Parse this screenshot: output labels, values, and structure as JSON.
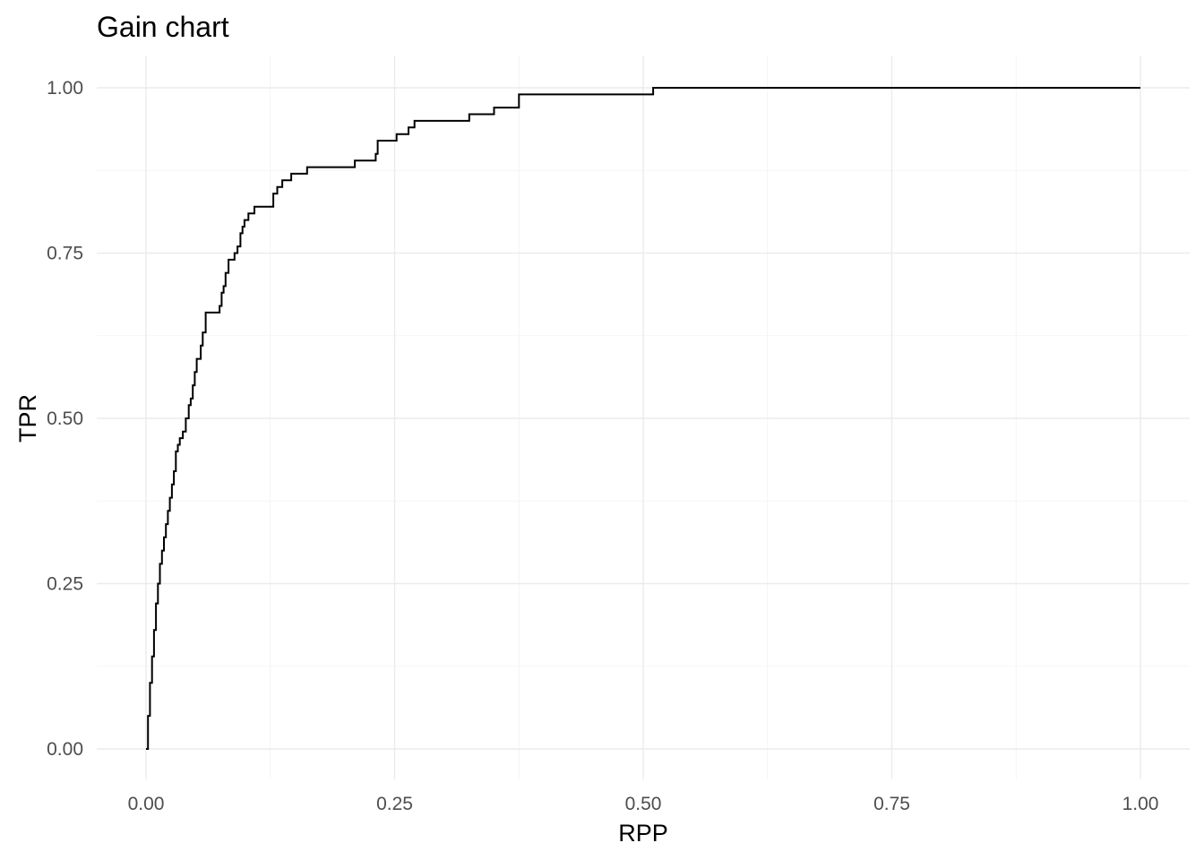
{
  "chart_data": {
    "type": "line",
    "title": "Gain chart",
    "xlabel": "RPP",
    "ylabel": "TPR",
    "xlim": [
      0,
      1
    ],
    "ylim": [
      0,
      1
    ],
    "grid": true,
    "legend": "none",
    "x_ticks": [
      0,
      0.25,
      0.5,
      0.75,
      1
    ],
    "x_tick_labels": [
      "0.00",
      "0.25",
      "0.50",
      "0.75",
      "1.00"
    ],
    "y_ticks": [
      0,
      0.25,
      0.5,
      0.75,
      1
    ],
    "y_tick_labels": [
      "0.00",
      "0.25",
      "0.50",
      "0.75",
      "1.00"
    ],
    "line_color": "#000000",
    "series": [
      {
        "x": [
          0,
          0.002,
          0.004,
          0.006,
          0.008,
          0.01,
          0.012,
          0.014,
          0.016,
          0.018,
          0.02,
          0.022,
          0.024,
          0.026,
          0.028,
          0.03,
          0.032,
          0.034,
          0.037,
          0.04,
          0.043,
          0.045,
          0.047,
          0.049,
          0.051,
          0.053,
          0.055,
          0.057,
          0.06,
          0.062,
          0.064,
          0.066,
          0.072,
          0.074,
          0.076,
          0.078,
          0.08,
          0.083,
          0.086,
          0.089,
          0.092,
          0.095,
          0.097,
          0.099,
          0.101,
          0.103,
          0.106,
          0.109,
          0.113,
          0.12,
          0.128,
          0.132,
          0.137,
          0.141,
          0.146,
          0.152,
          0.162,
          0.175,
          0.21,
          0.229,
          0.231,
          0.233,
          0.25,
          0.252,
          0.262,
          0.264,
          0.27,
          0.3,
          0.325,
          0.335,
          0.35,
          0.375,
          0.4,
          0.5,
          0.51,
          0.6,
          0.8,
          1.0
        ],
        "y": [
          0,
          0.05,
          0.1,
          0.14,
          0.18,
          0.22,
          0.25,
          0.28,
          0.3,
          0.32,
          0.34,
          0.36,
          0.38,
          0.4,
          0.42,
          0.45,
          0.46,
          0.47,
          0.48,
          0.5,
          0.52,
          0.53,
          0.55,
          0.57,
          0.59,
          0.59,
          0.61,
          0.63,
          0.66,
          0.66,
          0.66,
          0.66,
          0.66,
          0.67,
          0.69,
          0.7,
          0.72,
          0.74,
          0.74,
          0.75,
          0.76,
          0.78,
          0.79,
          0.8,
          0.8,
          0.81,
          0.81,
          0.82,
          0.82,
          0.82,
          0.84,
          0.85,
          0.86,
          0.86,
          0.87,
          0.87,
          0.88,
          0.88,
          0.89,
          0.89,
          0.9,
          0.92,
          0.92,
          0.93,
          0.93,
          0.94,
          0.95,
          0.95,
          0.96,
          0.96,
          0.97,
          0.99,
          0.99,
          0.99,
          1.0,
          1.0,
          1.0,
          1.0
        ]
      }
    ]
  }
}
